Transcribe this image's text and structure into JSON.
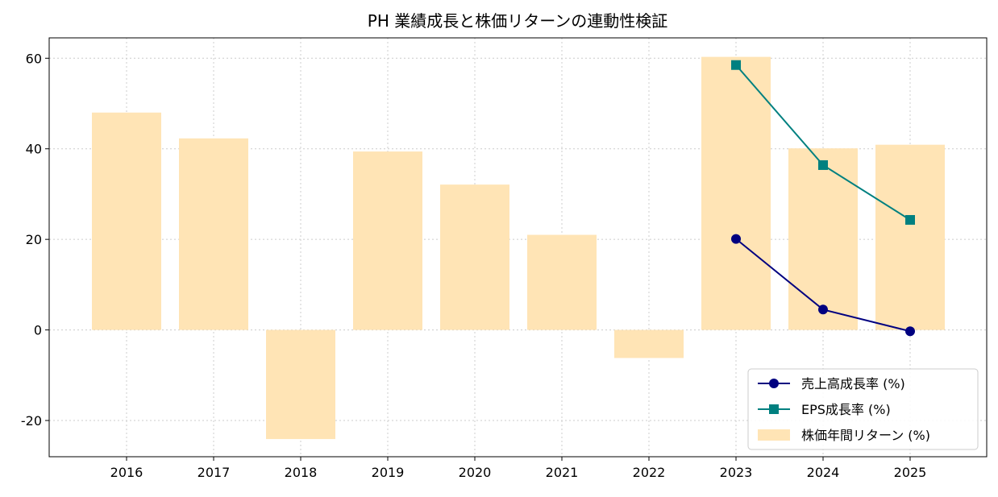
{
  "chart_data": {
    "type": "bar",
    "title": "PH 業績成長と株価リターンの連動性検証",
    "xlabel": "",
    "ylabel": "",
    "categories": [
      "2016",
      "2017",
      "2018",
      "2019",
      "2020",
      "2021",
      "2022",
      "2023",
      "2024",
      "2025"
    ],
    "ylim": [
      -28,
      64.5
    ],
    "yticks": [
      -20,
      0,
      20,
      40,
      60
    ],
    "grid": true,
    "legend_position": "lower-right",
    "series": [
      {
        "name": "売上高成長率 (%)",
        "kind": "line",
        "marker": "circle",
        "color": "#000080",
        "values": [
          null,
          null,
          null,
          null,
          null,
          null,
          null,
          20.1,
          4.5,
          -0.3
        ]
      },
      {
        "name": "EPS成長率 (%)",
        "kind": "line",
        "marker": "square",
        "color": "#008080",
        "values": [
          null,
          null,
          null,
          null,
          null,
          null,
          null,
          58.5,
          36.4,
          24.3
        ]
      },
      {
        "name": "株価年間リターン (%)",
        "kind": "bar",
        "color": "#ffe4b5",
        "values": [
          48.0,
          42.3,
          -24.1,
          39.4,
          32.1,
          21.0,
          -6.2,
          60.3,
          40.1,
          40.9
        ]
      }
    ]
  }
}
